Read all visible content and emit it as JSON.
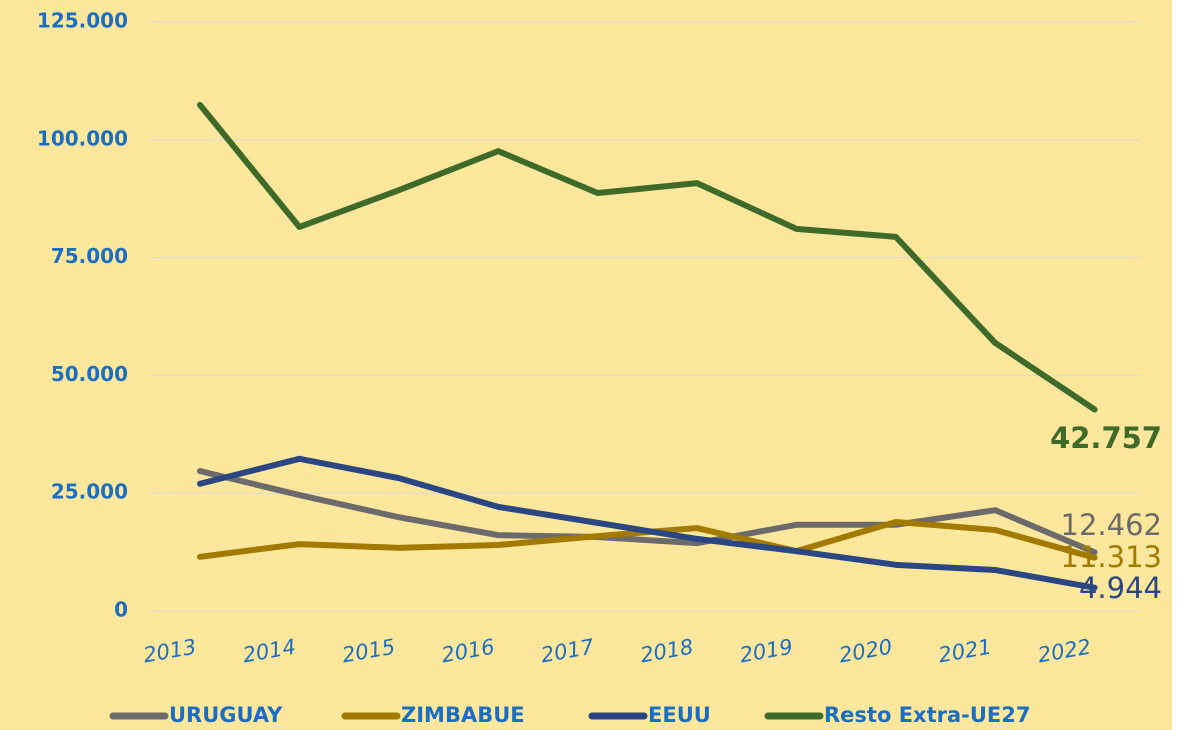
{
  "chart_data": {
    "type": "line",
    "categories": [
      "2013",
      "2014",
      "2015",
      "2016",
      "2017",
      "2018",
      "2019",
      "2020",
      "2021",
      "2022"
    ],
    "series": [
      {
        "name": "URUGUAY",
        "color": "#6b6b6b",
        "values": [
          29700,
          24600,
          19900,
          16100,
          15700,
          14400,
          18300,
          18300,
          21400,
          12462
        ],
        "value_labels": [
          null,
          null,
          null,
          null,
          null,
          null,
          null,
          null,
          null,
          "12.462"
        ]
      },
      {
        "name": "ZIMBABUE",
        "color": "#a37a00",
        "values": [
          11500,
          14200,
          13400,
          14000,
          15900,
          17600,
          12700,
          18900,
          17200,
          11313
        ],
        "value_labels": [
          null,
          null,
          null,
          null,
          null,
          null,
          null,
          null,
          null,
          "11.313"
        ]
      },
      {
        "name": "EEUU",
        "color": "#2a4784",
        "values": [
          27000,
          32300,
          28200,
          22100,
          18700,
          15300,
          12700,
          9800,
          8700,
          4944
        ],
        "value_labels": [
          null,
          null,
          null,
          null,
          null,
          null,
          null,
          null,
          null,
          "4.944"
        ]
      },
      {
        "name": "Resto Extra-UE27",
        "color": "#3e6b29",
        "values": [
          107400,
          81500,
          89300,
          97600,
          88700,
          90800,
          81100,
          79400,
          56900,
          42757
        ],
        "value_labels": [
          null,
          null,
          null,
          null,
          null,
          null,
          null,
          null,
          null,
          "42.757"
        ]
      }
    ],
    "ylim": [
      0,
      125000
    ],
    "yticks": [
      0,
      {
        "value": 25000,
        "label": "25.000"
      },
      {
        "value": 50000,
        "label": "50.000"
      },
      {
        "value": 75000,
        "label": "75.000"
      },
      {
        "value": 100000,
        "label": "100.000"
      },
      {
        "value": 125000,
        "label": "125.000"
      }
    ],
    "grid": true,
    "legend": "bottom"
  }
}
